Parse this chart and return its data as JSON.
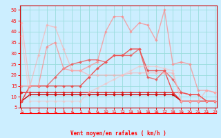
{
  "xlabel": "Vent moyen/en rafales ( km/h )",
  "background_color": "#cceeff",
  "grid_color": "#99dddd",
  "x": [
    0,
    1,
    2,
    3,
    4,
    5,
    6,
    7,
    8,
    9,
    10,
    11,
    12,
    13,
    14,
    15,
    16,
    17,
    18,
    19,
    20,
    21,
    22,
    23
  ],
  "series": [
    {
      "color": "#cc0000",
      "alpha": 1.0,
      "lw": 1.0,
      "data": [
        8,
        11,
        11,
        11,
        11,
        11,
        11,
        11,
        11,
        11,
        11,
        11,
        11,
        11,
        11,
        11,
        11,
        11,
        11,
        8,
        8,
        8,
        8,
        8
      ]
    },
    {
      "color": "#dd2222",
      "alpha": 1.0,
      "lw": 1.0,
      "data": [
        12,
        12,
        12,
        12,
        12,
        12,
        12,
        12,
        12,
        12,
        12,
        12,
        12,
        12,
        12,
        12,
        12,
        12,
        12,
        8,
        8,
        8,
        8,
        8
      ]
    },
    {
      "color": "#ee4444",
      "alpha": 0.9,
      "lw": 1.0,
      "data": [
        8,
        15,
        15,
        15,
        15,
        15,
        15,
        15,
        19,
        23,
        26,
        29,
        29,
        32,
        32,
        22,
        22,
        22,
        12,
        12,
        11,
        11,
        8,
        8
      ]
    },
    {
      "color": "#ee5555",
      "alpha": 0.8,
      "lw": 1.0,
      "data": [
        8,
        15,
        15,
        15,
        19,
        23,
        25,
        26,
        27,
        27,
        26,
        29,
        29,
        29,
        32,
        19,
        18,
        22,
        18,
        12,
        11,
        11,
        8,
        8
      ]
    },
    {
      "color": "#ff8888",
      "alpha": 0.7,
      "lw": 1.0,
      "data": [
        15,
        15,
        15,
        33,
        35,
        23,
        22,
        22,
        24,
        26,
        40,
        47,
        47,
        40,
        44,
        43,
        36,
        50,
        25,
        26,
        25,
        13,
        13,
        12
      ]
    },
    {
      "color": "#ffaaaa",
      "alpha": 0.6,
      "lw": 1.0,
      "data": [
        44,
        15,
        29,
        43,
        42,
        32,
        22,
        22,
        20,
        20,
        20,
        20,
        20,
        21,
        21,
        21,
        21,
        21,
        21,
        8,
        8,
        8,
        13,
        12
      ]
    },
    {
      "color": "#ffbbbb",
      "alpha": 0.55,
      "lw": 1.0,
      "data": [
        38,
        8,
        8,
        8,
        8,
        8,
        8,
        8,
        12,
        14,
        16,
        18,
        20,
        22,
        24,
        24,
        24,
        23,
        22,
        8,
        8,
        8,
        8,
        8
      ]
    }
  ],
  "ylim": [
    5,
    52
  ],
  "xlim": [
    -0.2,
    23.2
  ],
  "yticks": [
    5,
    10,
    15,
    20,
    25,
    30,
    35,
    40,
    45,
    50
  ],
  "xticks": [
    0,
    1,
    2,
    3,
    4,
    5,
    6,
    7,
    8,
    9,
    10,
    11,
    12,
    13,
    14,
    15,
    16,
    17,
    18,
    19,
    20,
    21,
    22,
    23
  ],
  "marker": "D",
  "markersize": 2.0
}
